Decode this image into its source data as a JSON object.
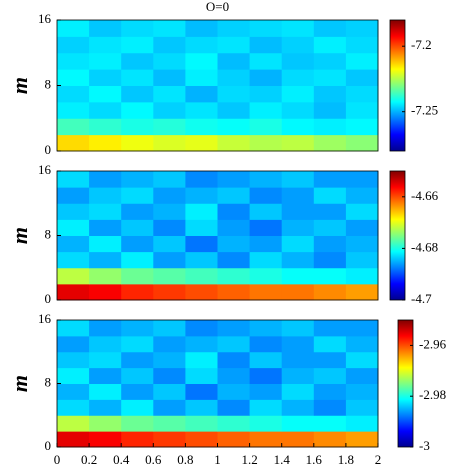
{
  "chart_data": [
    {
      "type": "heatmap",
      "title": "O=0",
      "ylabel": "m",
      "colormap": "jet",
      "xlim": [
        0,
        2
      ],
      "ylim": [
        0,
        16
      ],
      "yticks": [
        0,
        8,
        16
      ],
      "clim": [
        -7.28,
        -7.18
      ],
      "cticks": [
        -7.2,
        -7.25
      ],
      "z": [
        [
          -7.214,
          -7.216,
          -7.219,
          -7.221,
          -7.22,
          -7.223,
          -7.225,
          -7.224,
          -7.227,
          -7.229
        ],
        [
          -7.236,
          -7.238,
          -7.24,
          -7.239,
          -7.241,
          -7.242,
          -7.24,
          -7.243,
          -7.244,
          -7.243
        ],
        [
          -7.244,
          -7.246,
          -7.243,
          -7.247,
          -7.245,
          -7.248,
          -7.244,
          -7.246,
          -7.249,
          -7.245
        ],
        [
          -7.246,
          -7.243,
          -7.248,
          -7.245,
          -7.25,
          -7.246,
          -7.247,
          -7.244,
          -7.248,
          -7.246
        ],
        [
          -7.243,
          -7.247,
          -7.245,
          -7.249,
          -7.244,
          -7.247,
          -7.25,
          -7.246,
          -7.245,
          -7.248
        ],
        [
          -7.245,
          -7.244,
          -7.248,
          -7.246,
          -7.243,
          -7.249,
          -7.245,
          -7.248,
          -7.247,
          -7.244
        ],
        [
          -7.247,
          -7.245,
          -7.244,
          -7.248,
          -7.246,
          -7.245,
          -7.249,
          -7.247,
          -7.244,
          -7.246
        ],
        [
          -7.244,
          -7.248,
          -7.246,
          -7.245,
          -7.249,
          -7.247,
          -7.246,
          -7.245,
          -7.248,
          -7.247
        ]
      ]
    },
    {
      "type": "heatmap",
      "ylabel": "m",
      "colormap": "jet",
      "xlim": [
        0,
        2
      ],
      "ylim": [
        0,
        16
      ],
      "yticks": [
        0,
        8,
        16
      ],
      "clim": [
        -4.7,
        -4.65
      ],
      "cticks": [
        -4.66,
        -4.68,
        -4.7
      ],
      "z": [
        [
          -4.655,
          -4.656,
          -4.658,
          -4.659,
          -4.66,
          -4.661,
          -4.662,
          -4.662,
          -4.663,
          -4.664
        ],
        [
          -4.672,
          -4.674,
          -4.676,
          -4.677,
          -4.678,
          -4.679,
          -4.68,
          -4.681,
          -4.681,
          -4.682
        ],
        [
          -4.683,
          -4.685,
          -4.682,
          -4.686,
          -4.684,
          -4.687,
          -4.683,
          -4.685,
          -4.687,
          -4.684
        ],
        [
          -4.685,
          -4.682,
          -4.686,
          -4.684,
          -4.688,
          -4.685,
          -4.686,
          -4.683,
          -4.686,
          -4.685
        ],
        [
          -4.682,
          -4.686,
          -4.684,
          -4.687,
          -4.683,
          -4.686,
          -4.688,
          -4.685,
          -4.684,
          -4.686
        ],
        [
          -4.684,
          -4.683,
          -4.686,
          -4.685,
          -4.682,
          -4.687,
          -4.684,
          -4.686,
          -4.686,
          -4.683
        ],
        [
          -4.686,
          -4.684,
          -4.683,
          -4.686,
          -4.685,
          -4.684,
          -4.687,
          -4.686,
          -4.683,
          -4.685
        ],
        [
          -4.683,
          -4.686,
          -4.685,
          -4.684,
          -4.687,
          -4.686,
          -4.685,
          -4.684,
          -4.686,
          -4.686
        ]
      ]
    },
    {
      "type": "heatmap",
      "ylabel": "m",
      "colormap": "jet",
      "xlim": [
        0,
        2
      ],
      "ylim": [
        0,
        16
      ],
      "yticks": [
        0,
        8,
        16
      ],
      "xticks": [
        0,
        0.2,
        0.4,
        0.6,
        0.8,
        1,
        1.2,
        1.4,
        1.6,
        1.8,
        2
      ],
      "clim": [
        -3,
        -2.95
      ],
      "cticks": [
        -2.96,
        -2.98,
        -3
      ],
      "z": [
        [
          -2.955,
          -2.956,
          -2.958,
          -2.959,
          -2.96,
          -2.961,
          -2.962,
          -2.962,
          -2.963,
          -2.964
        ],
        [
          -2.972,
          -2.974,
          -2.976,
          -2.977,
          -2.978,
          -2.979,
          -2.98,
          -2.981,
          -2.981,
          -2.982
        ],
        [
          -2.983,
          -2.985,
          -2.982,
          -2.986,
          -2.984,
          -2.987,
          -2.983,
          -2.985,
          -2.987,
          -2.984
        ],
        [
          -2.985,
          -2.982,
          -2.986,
          -2.984,
          -2.988,
          -2.985,
          -2.986,
          -2.983,
          -2.986,
          -2.985
        ],
        [
          -2.982,
          -2.986,
          -2.984,
          -2.987,
          -2.983,
          -2.986,
          -2.988,
          -2.985,
          -2.984,
          -2.986
        ],
        [
          -2.984,
          -2.983,
          -2.986,
          -2.985,
          -2.982,
          -2.987,
          -2.984,
          -2.986,
          -2.986,
          -2.983
        ],
        [
          -2.986,
          -2.984,
          -2.983,
          -2.986,
          -2.985,
          -2.984,
          -2.987,
          -2.986,
          -2.983,
          -2.985
        ],
        [
          -2.983,
          -2.986,
          -2.985,
          -2.984,
          -2.987,
          -2.986,
          -2.985,
          -2.984,
          -2.986,
          -2.986
        ]
      ]
    }
  ]
}
